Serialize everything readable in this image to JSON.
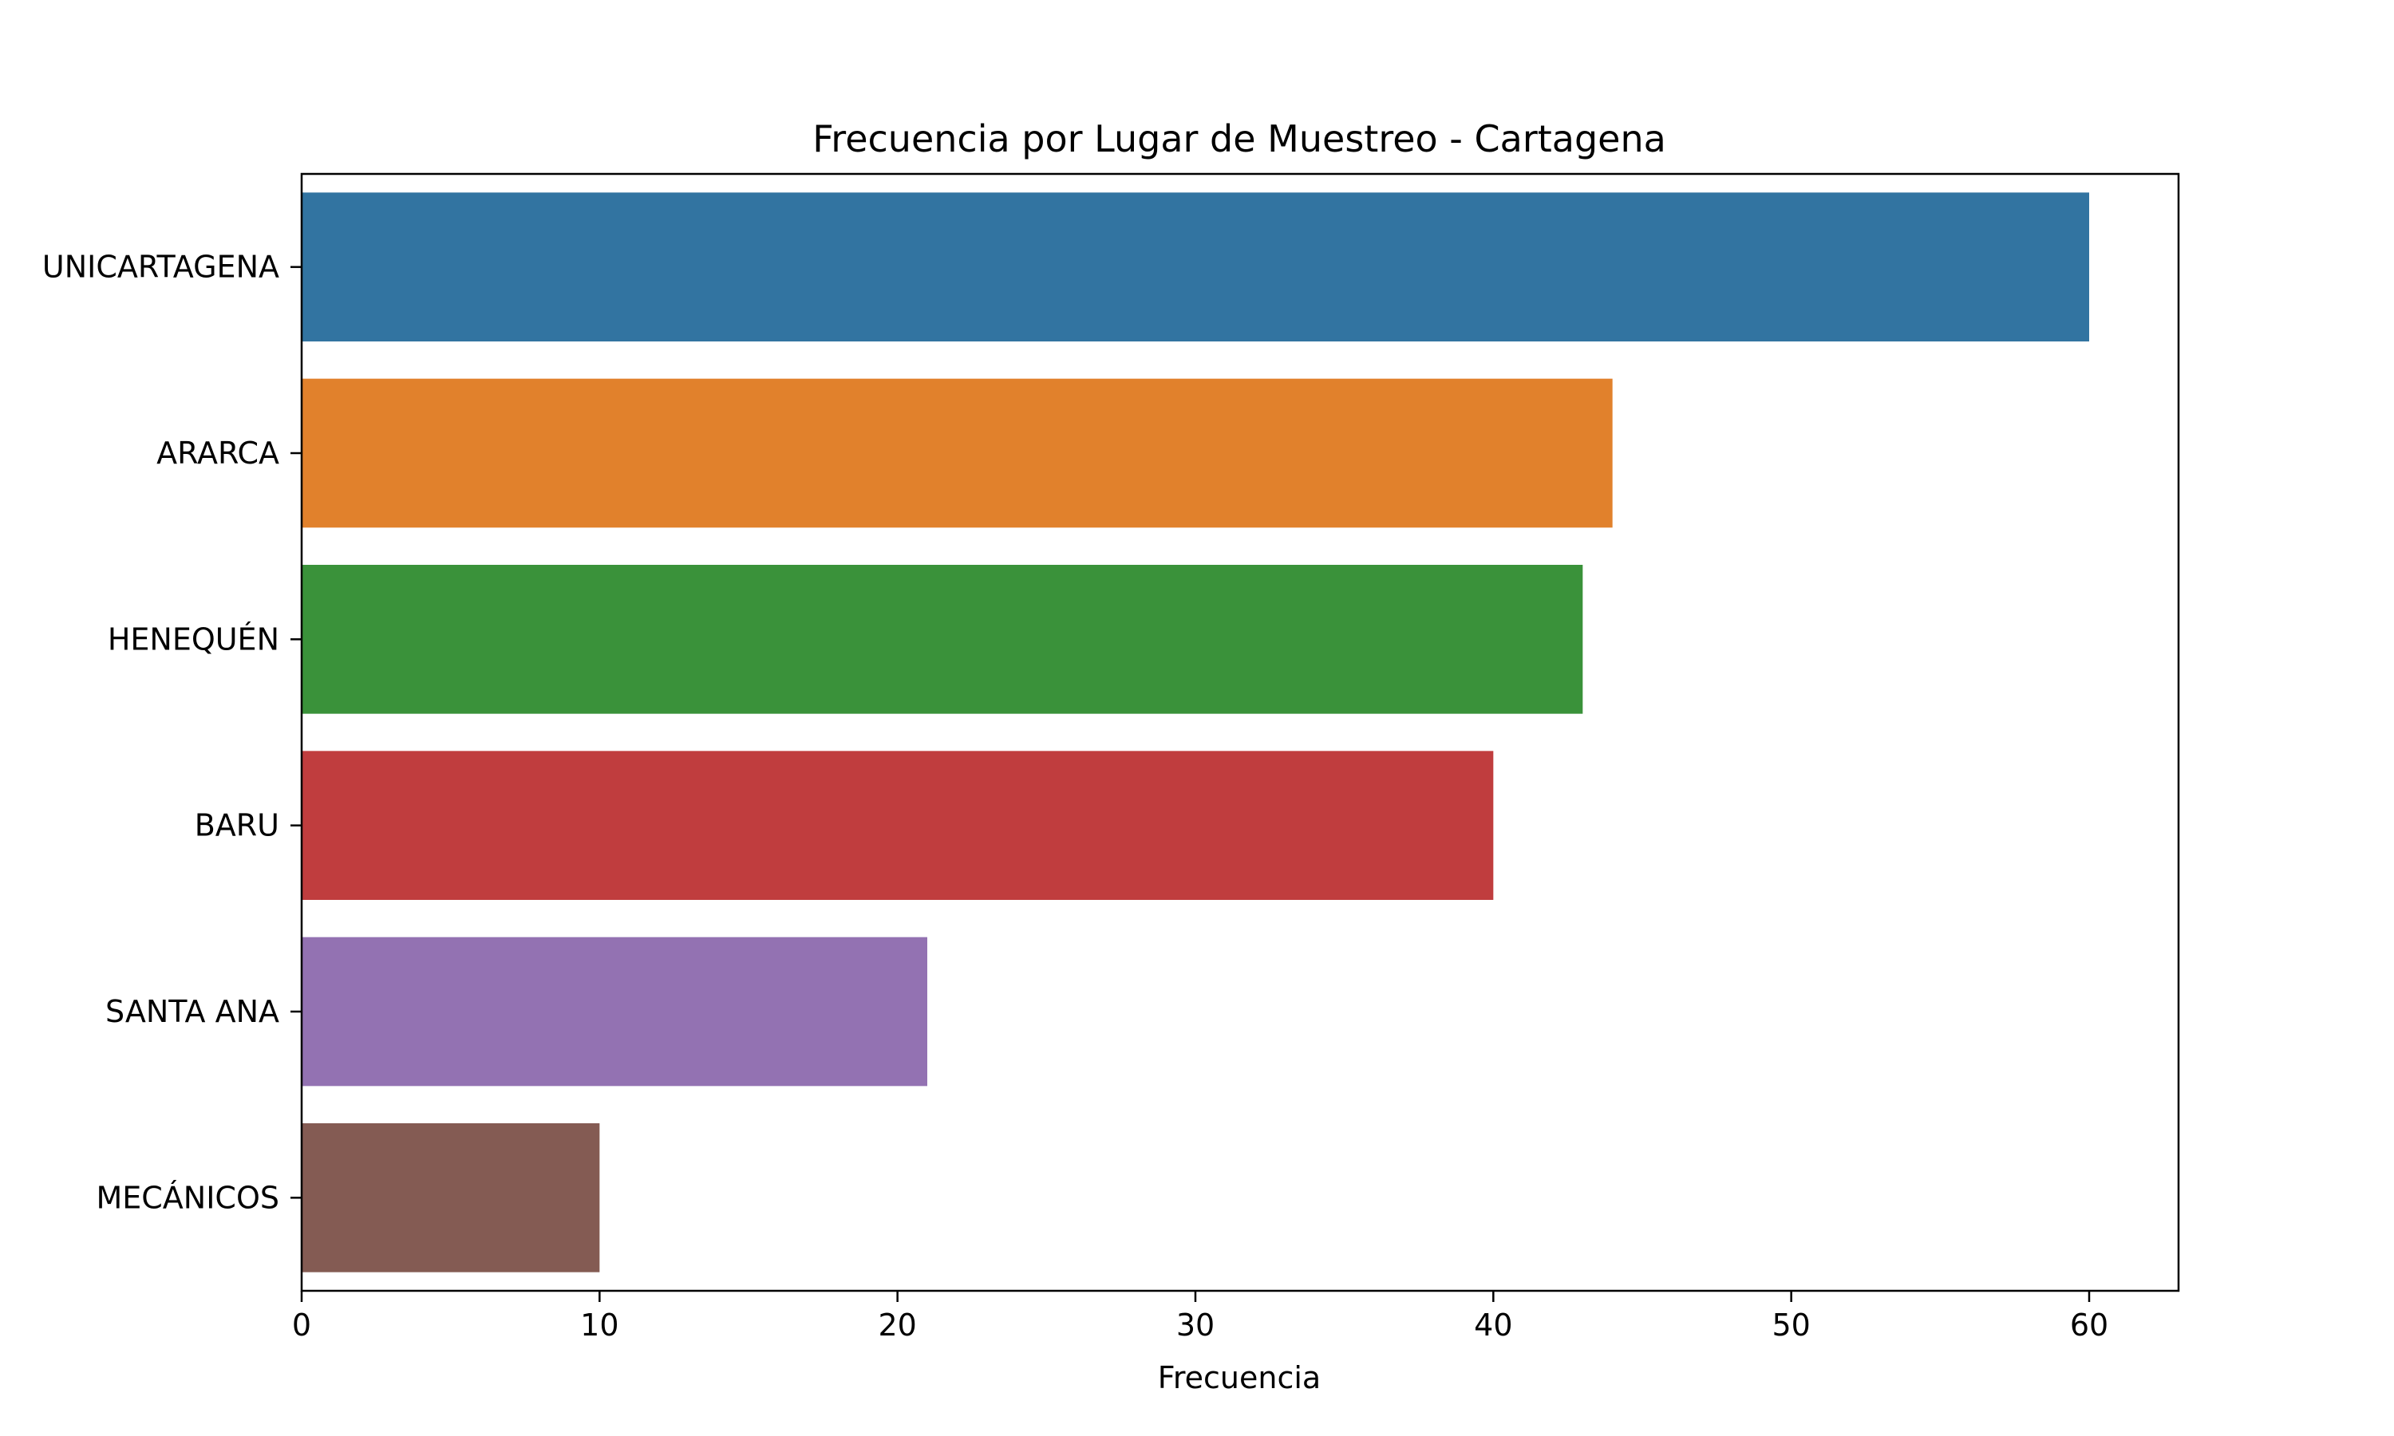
{
  "chart_data": {
    "type": "bar",
    "orientation": "horizontal",
    "title": "Frecuencia por Lugar de Muestreo - Cartagena",
    "xlabel": "Frecuencia",
    "ylabel": "",
    "categories": [
      "UNICARTAGENA",
      "ARARCA",
      "HENEQUÉN",
      "BARU",
      "SANTA ANA",
      "MECÁNICOS"
    ],
    "values": [
      60,
      44,
      43,
      40,
      21,
      10
    ],
    "colors": [
      "#3274a1",
      "#e1812c",
      "#3a923a",
      "#c03d3e",
      "#9372b2",
      "#845b53"
    ],
    "xlim": [
      0,
      63
    ],
    "xticks": [
      0,
      10,
      20,
      30,
      40,
      50,
      60
    ],
    "grid": false,
    "legend": "none"
  }
}
